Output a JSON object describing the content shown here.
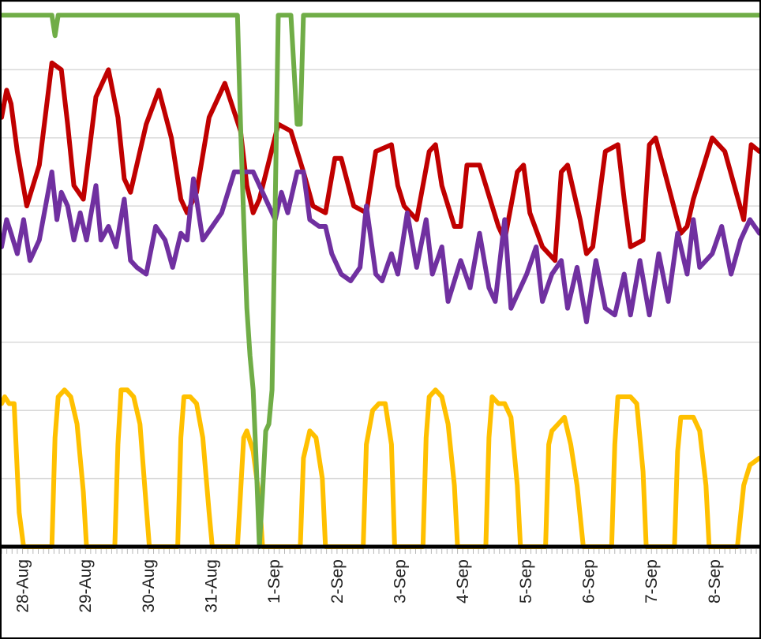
{
  "chart_data": {
    "type": "line",
    "title": "",
    "xlabel": "",
    "ylabel": "",
    "xlim": [
      0,
      12.05
    ],
    "ylim": [
      0,
      8
    ],
    "grid": true,
    "legend": "none",
    "tick_labels": [
      "28-Aug",
      "29-Aug",
      "30-Aug",
      "31-Aug",
      "1-Sep",
      "2-Sep",
      "3-Sep",
      "4-Sep",
      "5-Sep",
      "6-Sep",
      "7-Sep",
      "8-Sep"
    ],
    "tick_positions": [
      0.35,
      1.35,
      2.35,
      3.35,
      4.35,
      5.35,
      6.35,
      7.35,
      8.35,
      9.35,
      10.35,
      11.35
    ],
    "series": [
      {
        "name": "red",
        "color": "#c00000",
        "x": [
          0,
          0.08,
          0.15,
          0.25,
          0.4,
          0.6,
          0.8,
          0.95,
          1.05,
          1.15,
          1.3,
          1.5,
          1.7,
          1.85,
          1.95,
          2.05,
          2.3,
          2.5,
          2.7,
          2.85,
          2.95,
          3.1,
          3.3,
          3.55,
          3.8,
          3.9,
          4.0,
          4.1,
          4.4,
          4.6,
          4.8,
          4.95,
          5.15,
          5.3,
          5.4,
          5.6,
          5.8,
          5.95,
          6.2,
          6.3,
          6.4,
          6.6,
          6.8,
          6.9,
          7.0,
          7.2,
          7.3,
          7.4,
          7.6,
          7.8,
          7.9,
          8.0,
          8.2,
          8.3,
          8.4,
          8.6,
          8.8,
          8.9,
          9.0,
          9.2,
          9.3,
          9.4,
          9.6,
          9.8,
          9.9,
          10.0,
          10.2,
          10.3,
          10.4,
          10.6,
          10.8,
          10.9,
          11.0,
          11.3,
          11.5,
          11.8,
          11.92,
          12.05
        ],
        "values": [
          6.3,
          6.7,
          6.5,
          5.8,
          5.0,
          5.6,
          7.1,
          7.0,
          6.2,
          5.3,
          5.1,
          6.6,
          7.0,
          6.3,
          5.4,
          5.2,
          6.2,
          6.7,
          6.0,
          5.1,
          4.9,
          5.2,
          6.3,
          6.8,
          6.1,
          5.3,
          4.9,
          5.1,
          6.2,
          6.1,
          5.5,
          5.0,
          4.9,
          5.7,
          5.7,
          5.0,
          4.9,
          5.8,
          5.9,
          5.3,
          5.0,
          4.8,
          5.8,
          5.9,
          5.3,
          4.7,
          4.7,
          5.6,
          5.6,
          5.0,
          4.7,
          4.5,
          5.5,
          5.6,
          4.9,
          4.4,
          4.2,
          5.5,
          5.6,
          4.8,
          4.3,
          4.4,
          5.8,
          5.9,
          5.1,
          4.4,
          4.5,
          5.9,
          6.0,
          5.3,
          4.6,
          4.7,
          5.1,
          6.0,
          5.8,
          4.8,
          5.9,
          5.8
        ]
      },
      {
        "name": "purple",
        "color": "#7030a0",
        "x": [
          0,
          0.08,
          0.15,
          0.25,
          0.35,
          0.45,
          0.6,
          0.8,
          0.88,
          0.95,
          1.05,
          1.15,
          1.25,
          1.35,
          1.5,
          1.58,
          1.7,
          1.82,
          1.95,
          2.05,
          2.15,
          2.3,
          2.45,
          2.6,
          2.72,
          2.85,
          2.95,
          3.05,
          3.2,
          3.35,
          3.5,
          3.7,
          3.85,
          4.0,
          4.35,
          4.45,
          4.55,
          4.7,
          4.8,
          4.9,
          5.05,
          5.15,
          5.25,
          5.4,
          5.55,
          5.7,
          5.8,
          5.95,
          6.05,
          6.2,
          6.3,
          6.45,
          6.6,
          6.75,
          6.85,
          7.0,
          7.1,
          7.3,
          7.45,
          7.6,
          7.75,
          7.85,
          8.0,
          8.1,
          8.25,
          8.35,
          8.5,
          8.6,
          8.75,
          8.9,
          9.0,
          9.15,
          9.3,
          9.45,
          9.6,
          9.75,
          9.9,
          10.0,
          10.15,
          10.3,
          10.45,
          10.6,
          10.75,
          10.9,
          11.0,
          11.1,
          11.3,
          11.45,
          11.6,
          11.75,
          11.9,
          12.05
        ],
        "values": [
          4.4,
          4.8,
          4.6,
          4.3,
          4.8,
          4.2,
          4.5,
          5.5,
          4.8,
          5.2,
          5.0,
          4.5,
          4.9,
          4.5,
          5.3,
          4.5,
          4.7,
          4.4,
          5.1,
          4.2,
          4.1,
          4.0,
          4.7,
          4.5,
          4.1,
          4.6,
          4.5,
          5.4,
          4.5,
          4.7,
          4.9,
          5.5,
          5.5,
          5.5,
          4.8,
          5.2,
          4.9,
          5.5,
          5.5,
          4.8,
          4.7,
          4.7,
          4.3,
          4.0,
          3.9,
          4.1,
          5.0,
          4.0,
          3.9,
          4.3,
          4.0,
          4.9,
          4.1,
          4.8,
          4.0,
          4.4,
          3.6,
          4.2,
          3.8,
          4.6,
          3.8,
          3.6,
          4.8,
          3.5,
          3.8,
          4.0,
          4.4,
          3.6,
          4.0,
          4.2,
          3.5,
          4.1,
          3.3,
          4.2,
          3.5,
          3.4,
          4.0,
          3.4,
          4.2,
          3.4,
          4.3,
          3.6,
          4.6,
          4.0,
          4.8,
          4.1,
          4.3,
          4.7,
          4.0,
          4.5,
          4.8,
          4.6
        ]
      },
      {
        "name": "yellow",
        "color": "#ffc000",
        "x": [
          0,
          0.05,
          0.12,
          0.2,
          0.28,
          0.35,
          0.8,
          0.85,
          0.9,
          1.0,
          1.1,
          1.2,
          1.3,
          1.35,
          1.8,
          1.85,
          1.9,
          2.0,
          2.1,
          2.2,
          2.3,
          2.35,
          2.8,
          2.85,
          2.9,
          3.0,
          3.1,
          3.2,
          3.3,
          3.35,
          3.75,
          3.85,
          3.9,
          4.0,
          4.1,
          4.15,
          4.75,
          4.8,
          4.9,
          5.0,
          5.1,
          5.15,
          5.75,
          5.8,
          5.9,
          6.0,
          6.1,
          6.2,
          6.25,
          6.7,
          6.75,
          6.8,
          6.9,
          7.0,
          7.1,
          7.2,
          7.25,
          7.7,
          7.75,
          7.8,
          7.9,
          8.0,
          8.1,
          8.2,
          8.25,
          8.65,
          8.7,
          8.75,
          8.85,
          8.95,
          9.05,
          9.15,
          9.25,
          9.3,
          9.7,
          9.75,
          9.8,
          9.9,
          10.0,
          10.1,
          10.2,
          10.25,
          10.7,
          10.75,
          10.8,
          10.9,
          11.0,
          11.1,
          11.2,
          11.25,
          11.7,
          11.8,
          11.9,
          12.05
        ],
        "values": [
          2.1,
          2.2,
          2.1,
          2.1,
          0.5,
          0,
          0,
          1.6,
          2.2,
          2.3,
          2.2,
          1.8,
          0.8,
          0,
          0,
          1.5,
          2.3,
          2.3,
          2.2,
          1.8,
          0.6,
          0,
          0,
          1.6,
          2.2,
          2.2,
          2.1,
          1.6,
          0.5,
          0,
          0,
          1.6,
          1.7,
          1.4,
          0.7,
          0,
          0,
          1.3,
          1.7,
          1.6,
          1.0,
          0,
          0,
          1.5,
          2.0,
          2.1,
          2.1,
          1.5,
          0,
          0,
          1.6,
          2.2,
          2.3,
          2.2,
          1.8,
          0.9,
          0,
          0,
          1.6,
          2.2,
          2.1,
          2.1,
          1.9,
          0.9,
          0,
          0,
          1.5,
          1.7,
          1.8,
          1.9,
          1.5,
          0.9,
          0,
          0,
          0,
          1.5,
          2.2,
          2.2,
          2.2,
          2.1,
          1.1,
          0,
          0,
          1.4,
          1.9,
          1.9,
          1.9,
          1.7,
          0.9,
          0,
          0,
          0.9,
          1.2,
          1.3
        ]
      },
      {
        "name": "green",
        "color": "#70ad47",
        "x": [
          0,
          0.8,
          0.85,
          0.9,
          3.75,
          3.8,
          3.85,
          3.9,
          3.95,
          4.0,
          4.05,
          4.1,
          4.15,
          4.2,
          4.25,
          4.3,
          4.35,
          4.4,
          4.5,
          4.6,
          4.65,
          4.7,
          4.75,
          4.8,
          4.85,
          4.9,
          5.0,
          5.05,
          12.05
        ],
        "values": [
          7.8,
          7.8,
          7.5,
          7.8,
          7.8,
          6.2,
          4.8,
          3.5,
          2.8,
          2.3,
          1.2,
          0,
          0.8,
          1.7,
          1.8,
          2.3,
          5.0,
          7.8,
          7.8,
          7.8,
          7.0,
          6.2,
          6.2,
          7.8,
          7.8,
          7.8,
          7.8,
          7.8,
          7.8
        ]
      }
    ]
  }
}
